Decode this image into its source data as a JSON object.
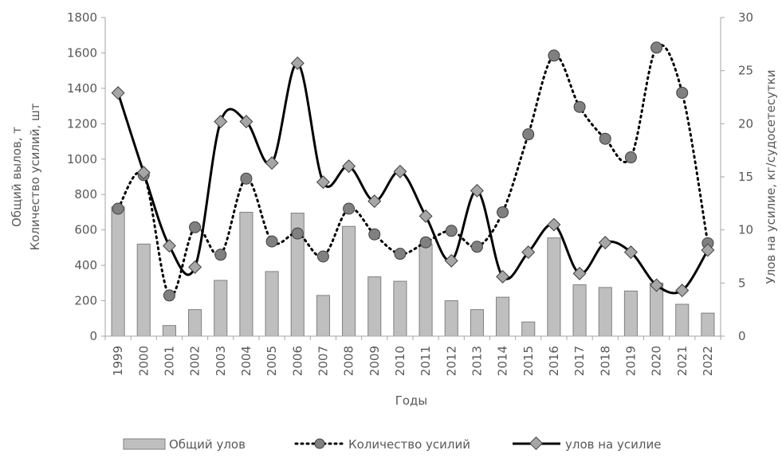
{
  "chart_data": {
    "type": "bar",
    "categories": [
      "1999",
      "2000",
      "2001",
      "2002",
      "2003",
      "2004",
      "2005",
      "2006",
      "2007",
      "2008",
      "2009",
      "2010",
      "2011",
      "2012",
      "2013",
      "2014",
      "2015",
      "2016",
      "2017",
      "2018",
      "2019",
      "2020",
      "2021",
      "2022"
    ],
    "xlabel": "Годы",
    "ylabel_left": [
      "Общий вылов, т",
      "Количество усилий, шт"
    ],
    "ylabel_right": "Улов на усилие, кг/судосетесутки",
    "ylim_left": [
      0,
      1800
    ],
    "ylim_right": [
      0,
      30
    ],
    "yticks_left": [
      "0",
      "200",
      "400",
      "600",
      "800",
      "1000",
      "1200",
      "1400",
      "1600",
      "1800"
    ],
    "yticks_right": [
      "0",
      "5",
      "10",
      "15",
      "20",
      "25",
      "30"
    ],
    "grid": false,
    "legend_position": "bottom",
    "series": [
      {
        "name": "Общий улов",
        "type": "bar",
        "axis": "left",
        "color": "#bfbfbf",
        "values": [
          730,
          520,
          60,
          150,
          315,
          700,
          365,
          695,
          230,
          620,
          335,
          310,
          520,
          200,
          150,
          220,
          80,
          555,
          290,
          275,
          255,
          300,
          180,
          130
        ]
      },
      {
        "name": "Количество усилий",
        "type": "line",
        "style": "dotted",
        "marker": "circle",
        "axis": "left",
        "color": "#000000",
        "values": [
          720,
          910,
          230,
          615,
          460,
          890,
          535,
          580,
          450,
          720,
          575,
          465,
          530,
          595,
          505,
          700,
          1140,
          1585,
          1295,
          1115,
          1010,
          1630,
          1375,
          525
        ]
      },
      {
        "name": "улов на усилие",
        "type": "line",
        "style": "solid",
        "marker": "diamond",
        "axis": "right",
        "color": "#000000",
        "values": [
          22.9,
          15.4,
          8.5,
          6.5,
          20.2,
          20.2,
          16.3,
          25.7,
          14.5,
          16.0,
          12.7,
          15.5,
          11.3,
          7.1,
          13.7,
          5.6,
          7.9,
          10.5,
          5.9,
          8.8,
          7.9,
          4.8,
          4.3,
          8.1
        ]
      }
    ]
  }
}
